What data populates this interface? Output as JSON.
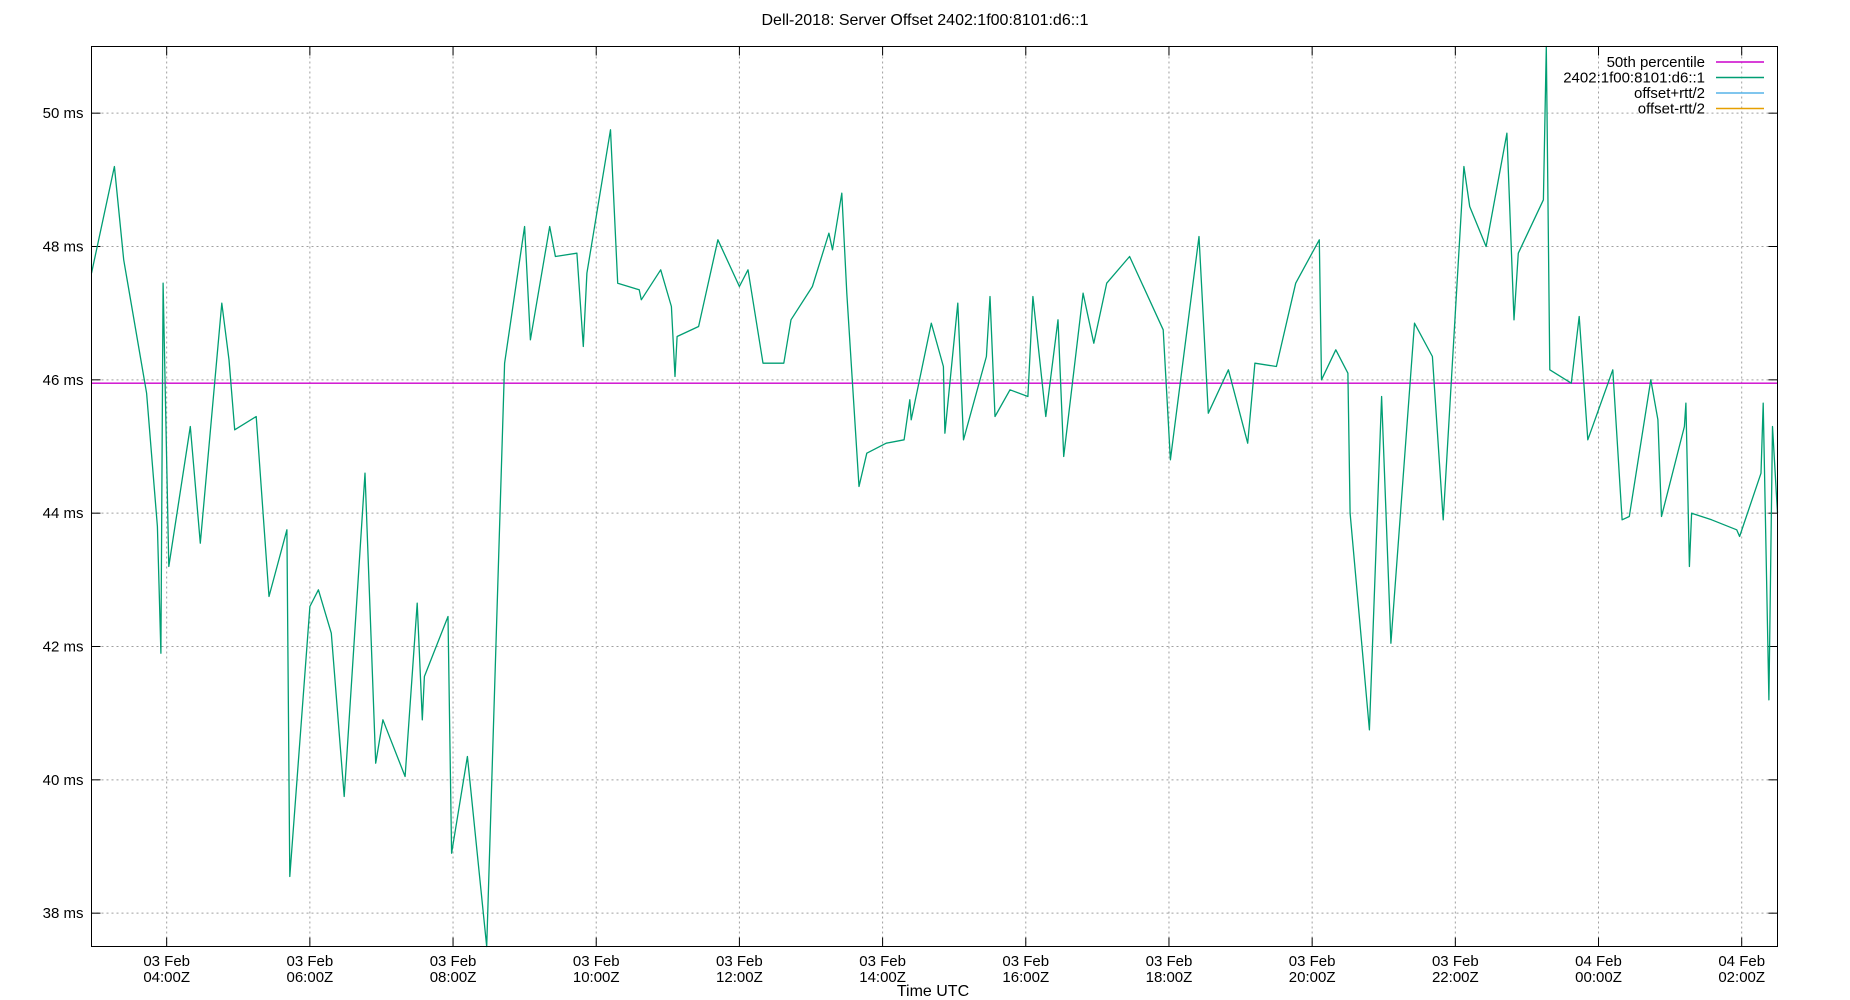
{
  "chart_data": {
    "type": "line",
    "title": "Dell-2018: Server Offset 2402:1f00:8101:d6::1",
    "xlabel": "Time UTC",
    "ylabel": "",
    "ylim": [
      37.5,
      51.0
    ],
    "xlim": [
      -1.05,
      22.5
    ],
    "grid": true,
    "legend_position": "top-right",
    "y_ticks": [
      {
        "value": 38,
        "label": "38 ms"
      },
      {
        "value": 40,
        "label": "40 ms"
      },
      {
        "value": 42,
        "label": "42 ms"
      },
      {
        "value": 44,
        "label": "44 ms"
      },
      {
        "value": 46,
        "label": "46 ms"
      },
      {
        "value": 48,
        "label": "48 ms"
      },
      {
        "value": 50,
        "label": "50 ms"
      }
    ],
    "x_ticks": [
      {
        "value": 0,
        "date": "03 Feb",
        "time": "04:00Z"
      },
      {
        "value": 2,
        "date": "03 Feb",
        "time": "06:00Z"
      },
      {
        "value": 4,
        "date": "03 Feb",
        "time": "08:00Z"
      },
      {
        "value": 6,
        "date": "03 Feb",
        "time": "10:00Z"
      },
      {
        "value": 8,
        "date": "03 Feb",
        "time": "12:00Z"
      },
      {
        "value": 10,
        "date": "03 Feb",
        "time": "14:00Z"
      },
      {
        "value": 12,
        "date": "03 Feb",
        "time": "16:00Z"
      },
      {
        "value": 14,
        "date": "03 Feb",
        "time": "18:00Z"
      },
      {
        "value": 16,
        "date": "03 Feb",
        "time": "20:00Z"
      },
      {
        "value": 18,
        "date": "03 Feb",
        "time": "22:00Z"
      },
      {
        "value": 20,
        "date": "04 Feb",
        "time": "00:00Z"
      },
      {
        "value": 22,
        "date": "04 Feb",
        "time": "02:00Z"
      }
    ],
    "series": [
      {
        "name": "50th percentile",
        "color": "#cc00cc",
        "values": [
          {
            "x": -1.05,
            "y": 45.95
          },
          {
            "x": 22.5,
            "y": 45.95
          }
        ]
      },
      {
        "name": "2402:1f00:8101:d6::1",
        "color": "#009e73",
        "values": [
          {
            "x": -1.05,
            "y": 47.6
          },
          {
            "x": -0.73,
            "y": 49.2
          },
          {
            "x": -0.6,
            "y": 47.8
          },
          {
            "x": -0.28,
            "y": 45.8
          },
          {
            "x": -0.13,
            "y": 43.8
          },
          {
            "x": -0.08,
            "y": 41.9
          },
          {
            "x": -0.05,
            "y": 47.45
          },
          {
            "x": 0.03,
            "y": 43.2
          },
          {
            "x": 0.33,
            "y": 45.3
          },
          {
            "x": 0.47,
            "y": 43.55
          },
          {
            "x": 0.77,
            "y": 47.15
          },
          {
            "x": 0.87,
            "y": 46.3
          },
          {
            "x": 0.95,
            "y": 45.25
          },
          {
            "x": 1.25,
            "y": 45.45
          },
          {
            "x": 1.43,
            "y": 42.75
          },
          {
            "x": 1.68,
            "y": 43.75
          },
          {
            "x": 1.72,
            "y": 38.55
          },
          {
            "x": 2.0,
            "y": 42.6
          },
          {
            "x": 2.12,
            "y": 42.85
          },
          {
            "x": 2.3,
            "y": 42.2
          },
          {
            "x": 2.48,
            "y": 39.75
          },
          {
            "x": 2.77,
            "y": 44.6
          },
          {
            "x": 2.92,
            "y": 40.25
          },
          {
            "x": 3.02,
            "y": 40.9
          },
          {
            "x": 3.33,
            "y": 40.05
          },
          {
            "x": 3.5,
            "y": 42.65
          },
          {
            "x": 3.57,
            "y": 40.9
          },
          {
            "x": 3.6,
            "y": 41.55
          },
          {
            "x": 3.93,
            "y": 42.45
          },
          {
            "x": 3.98,
            "y": 38.9
          },
          {
            "x": 4.2,
            "y": 40.35
          },
          {
            "x": 4.47,
            "y": 37.5
          },
          {
            "x": 4.72,
            "y": 46.25
          },
          {
            "x": 5.0,
            "y": 48.3
          },
          {
            "x": 5.08,
            "y": 46.6
          },
          {
            "x": 5.35,
            "y": 48.3
          },
          {
            "x": 5.43,
            "y": 47.85
          },
          {
            "x": 5.73,
            "y": 47.9
          },
          {
            "x": 5.82,
            "y": 46.5
          },
          {
            "x": 5.87,
            "y": 47.6
          },
          {
            "x": 6.2,
            "y": 49.75
          },
          {
            "x": 6.3,
            "y": 47.45
          },
          {
            "x": 6.6,
            "y": 47.35
          },
          {
            "x": 6.63,
            "y": 47.2
          },
          {
            "x": 6.9,
            "y": 47.65
          },
          {
            "x": 7.05,
            "y": 47.1
          },
          {
            "x": 7.1,
            "y": 46.05
          },
          {
            "x": 7.13,
            "y": 46.65
          },
          {
            "x": 7.43,
            "y": 46.8
          },
          {
            "x": 7.7,
            "y": 48.1
          },
          {
            "x": 8.0,
            "y": 47.4
          },
          {
            "x": 8.12,
            "y": 47.65
          },
          {
            "x": 8.33,
            "y": 46.25
          },
          {
            "x": 8.62,
            "y": 46.25
          },
          {
            "x": 8.72,
            "y": 46.9
          },
          {
            "x": 9.02,
            "y": 47.4
          },
          {
            "x": 9.25,
            "y": 48.2
          },
          {
            "x": 9.3,
            "y": 47.95
          },
          {
            "x": 9.43,
            "y": 48.8
          },
          {
            "x": 9.5,
            "y": 47.3
          },
          {
            "x": 9.67,
            "y": 44.4
          },
          {
            "x": 9.78,
            "y": 44.9
          },
          {
            "x": 10.05,
            "y": 45.05
          },
          {
            "x": 10.3,
            "y": 45.1
          },
          {
            "x": 10.38,
            "y": 45.7
          },
          {
            "x": 10.4,
            "y": 45.4
          },
          {
            "x": 10.68,
            "y": 46.85
          },
          {
            "x": 10.85,
            "y": 46.2
          },
          {
            "x": 10.87,
            "y": 45.2
          },
          {
            "x": 11.05,
            "y": 47.15
          },
          {
            "x": 11.13,
            "y": 45.1
          },
          {
            "x": 11.45,
            "y": 46.35
          },
          {
            "x": 11.5,
            "y": 47.25
          },
          {
            "x": 11.57,
            "y": 45.45
          },
          {
            "x": 11.78,
            "y": 45.85
          },
          {
            "x": 12.03,
            "y": 45.75
          },
          {
            "x": 12.1,
            "y": 47.25
          },
          {
            "x": 12.28,
            "y": 45.45
          },
          {
            "x": 12.45,
            "y": 46.9
          },
          {
            "x": 12.53,
            "y": 44.85
          },
          {
            "x": 12.8,
            "y": 47.3
          },
          {
            "x": 12.95,
            "y": 46.55
          },
          {
            "x": 13.13,
            "y": 47.45
          },
          {
            "x": 13.45,
            "y": 47.85
          },
          {
            "x": 13.92,
            "y": 46.75
          },
          {
            "x": 14.02,
            "y": 44.8
          },
          {
            "x": 14.42,
            "y": 48.15
          },
          {
            "x": 14.55,
            "y": 45.5
          },
          {
            "x": 14.83,
            "y": 46.15
          },
          {
            "x": 15.1,
            "y": 45.05
          },
          {
            "x": 15.2,
            "y": 46.25
          },
          {
            "x": 15.5,
            "y": 46.2
          },
          {
            "x": 15.77,
            "y": 47.45
          },
          {
            "x": 16.1,
            "y": 48.1
          },
          {
            "x": 16.13,
            "y": 46.0
          },
          {
            "x": 16.33,
            "y": 46.45
          },
          {
            "x": 16.5,
            "y": 46.1
          },
          {
            "x": 16.53,
            "y": 44.0
          },
          {
            "x": 16.8,
            "y": 40.75
          },
          {
            "x": 16.97,
            "y": 45.75
          },
          {
            "x": 17.1,
            "y": 42.05
          },
          {
            "x": 17.43,
            "y": 46.85
          },
          {
            "x": 17.68,
            "y": 46.35
          },
          {
            "x": 17.83,
            "y": 43.9
          },
          {
            "x": 18.12,
            "y": 49.2
          },
          {
            "x": 18.2,
            "y": 48.6
          },
          {
            "x": 18.43,
            "y": 48.0
          },
          {
            "x": 18.72,
            "y": 49.7
          },
          {
            "x": 18.82,
            "y": 46.9
          },
          {
            "x": 18.88,
            "y": 47.9
          },
          {
            "x": 19.23,
            "y": 48.7
          },
          {
            "x": 19.27,
            "y": 51.0
          },
          {
            "x": 19.32,
            "y": 46.15
          },
          {
            "x": 19.62,
            "y": 45.95
          },
          {
            "x": 19.73,
            "y": 46.95
          },
          {
            "x": 19.85,
            "y": 45.1
          },
          {
            "x": 20.2,
            "y": 46.15
          },
          {
            "x": 20.33,
            "y": 43.9
          },
          {
            "x": 20.43,
            "y": 43.95
          },
          {
            "x": 20.73,
            "y": 46.0
          },
          {
            "x": 20.83,
            "y": 45.4
          },
          {
            "x": 20.88,
            "y": 43.95
          },
          {
            "x": 21.2,
            "y": 45.3
          },
          {
            "x": 21.22,
            "y": 45.65
          },
          {
            "x": 21.27,
            "y": 43.2
          },
          {
            "x": 21.3,
            "y": 44.0
          },
          {
            "x": 21.58,
            "y": 43.9
          },
          {
            "x": 21.93,
            "y": 43.75
          },
          {
            "x": 21.97,
            "y": 43.65
          },
          {
            "x": 22.27,
            "y": 44.6
          },
          {
            "x": 22.3,
            "y": 45.65
          },
          {
            "x": 22.38,
            "y": 41.2
          },
          {
            "x": 22.43,
            "y": 45.3
          },
          {
            "x": 22.5,
            "y": 44.0
          }
        ]
      },
      {
        "name": "offset+rtt/2",
        "color": "#56b4e9",
        "values": []
      },
      {
        "name": "offset-rtt/2",
        "color": "#e69f00",
        "values": []
      }
    ]
  }
}
